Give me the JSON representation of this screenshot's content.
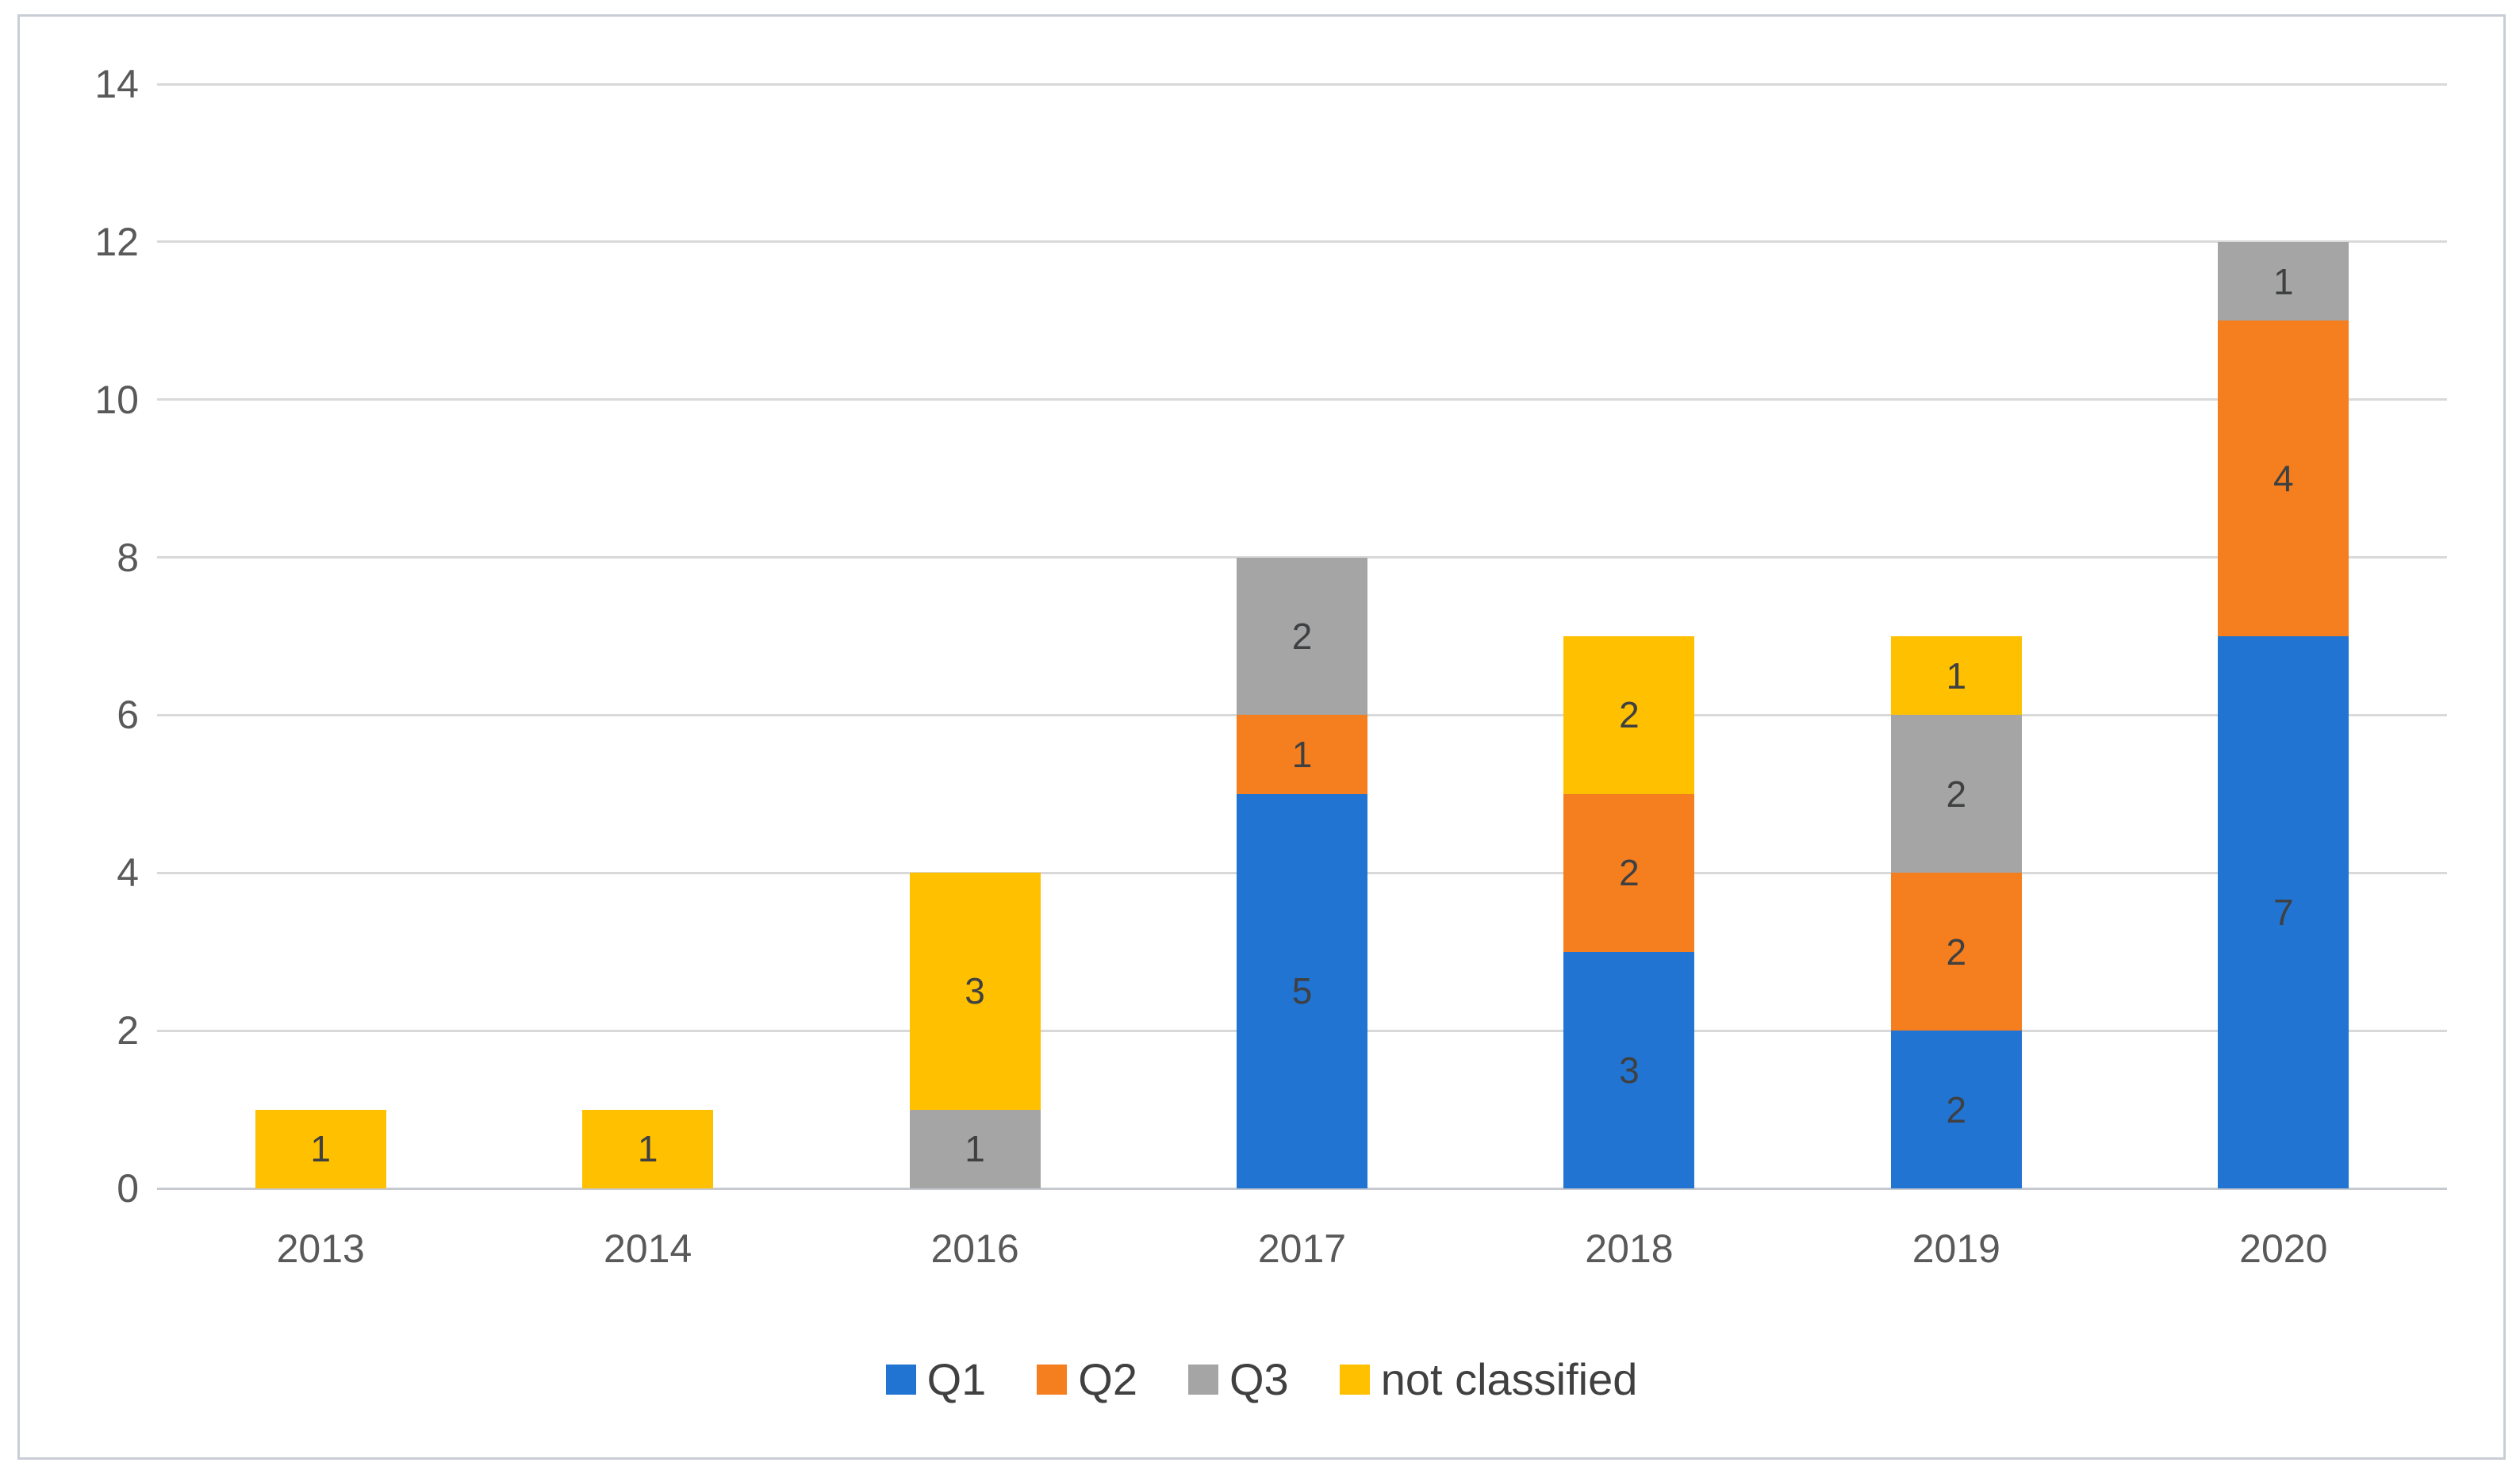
{
  "chart_data": {
    "type": "bar",
    "stacked": true,
    "title": "",
    "categories": [
      "2013",
      "2014",
      "2016",
      "2017",
      "2018",
      "2019",
      "2020"
    ],
    "series": [
      {
        "name": "Q1",
        "color": "#2174d2",
        "values": [
          0,
          0,
          0,
          5,
          3,
          2,
          7
        ]
      },
      {
        "name": "Q2",
        "color": "#f57e1e",
        "values": [
          0,
          0,
          0,
          1,
          2,
          2,
          4
        ]
      },
      {
        "name": "Q3",
        "color": "#a5a5a5",
        "values": [
          0,
          0,
          1,
          2,
          0,
          2,
          1
        ]
      },
      {
        "name": "not classified",
        "color": "#ffc000",
        "values": [
          1,
          1,
          3,
          0,
          2,
          1,
          0
        ]
      }
    ],
    "totals": [
      1,
      1,
      4,
      8,
      7,
      7,
      12
    ],
    "data_labels_shown": true,
    "xlabel": "",
    "ylabel": "",
    "ylim": [
      0,
      14
    ],
    "yticks": [
      0,
      2,
      4,
      6,
      8,
      10,
      12,
      14
    ],
    "grid": "horizontal",
    "legend_position": "bottom",
    "legend_entries": [
      "Q1",
      "Q2",
      "Q3",
      "not classified"
    ]
  },
  "colors": {
    "gridline": "#d9d9d9",
    "axis_line": "#c6cad0",
    "axis_text": "#595959",
    "data_label_text": "#3e4042",
    "legend_text": "#404040",
    "frame_border": "#c9ced6",
    "background": "#ffffff"
  }
}
